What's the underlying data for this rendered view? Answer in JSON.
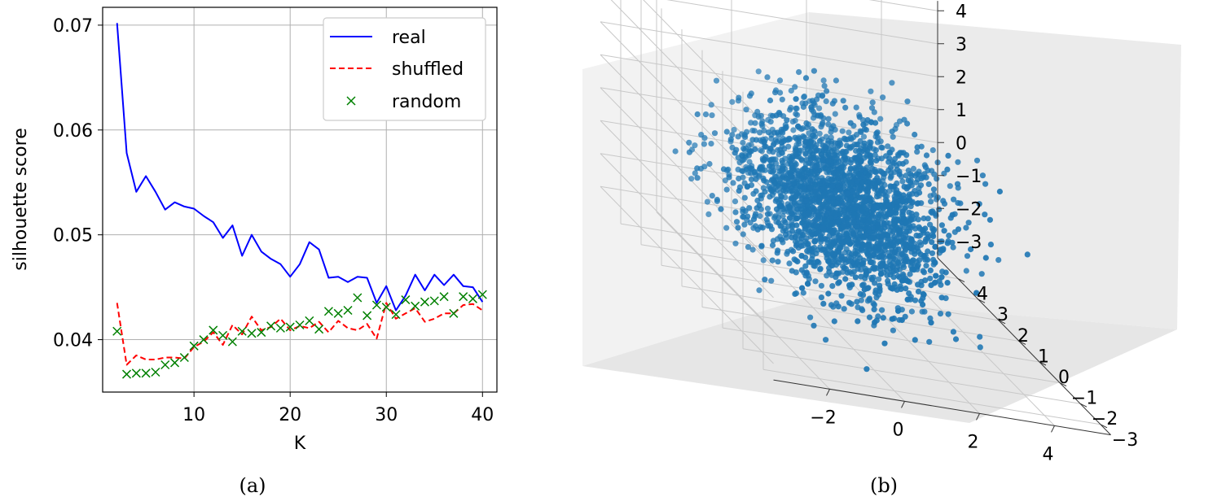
{
  "chart_data": [
    {
      "type": "line",
      "caption": "(a)",
      "xlabel": "K",
      "ylabel": "silhouette score",
      "xlim": [
        0.5,
        41.5
      ],
      "ylim": [
        0.035,
        0.0717
      ],
      "xticks": [
        10,
        20,
        30,
        40
      ],
      "yticks": [
        0.04,
        0.05,
        0.06,
        0.07
      ],
      "ytick_labels": [
        "0.04",
        "0.05",
        "0.06",
        "0.07"
      ],
      "grid": true,
      "legend_position": "top-right",
      "x": [
        2,
        3,
        4,
        5,
        6,
        7,
        8,
        9,
        10,
        11,
        12,
        13,
        14,
        15,
        16,
        17,
        18,
        19,
        20,
        21,
        22,
        23,
        24,
        25,
        26,
        27,
        28,
        29,
        30,
        31,
        32,
        33,
        34,
        35,
        36,
        37,
        38,
        39,
        40
      ],
      "series": [
        {
          "name": "real",
          "style": "solid",
          "color": "#0000ff",
          "values": [
            0.0702,
            0.0578,
            0.0541,
            0.0556,
            0.0541,
            0.0524,
            0.0531,
            0.0527,
            0.0525,
            0.0518,
            0.0512,
            0.0497,
            0.0509,
            0.048,
            0.05,
            0.0484,
            0.0477,
            0.0472,
            0.046,
            0.0472,
            0.0493,
            0.0486,
            0.0459,
            0.046,
            0.0455,
            0.046,
            0.0459,
            0.0435,
            0.0451,
            0.0428,
            0.0442,
            0.0462,
            0.0447,
            0.0462,
            0.0452,
            0.0462,
            0.0451,
            0.045,
            0.0436
          ]
        },
        {
          "name": "shuffled",
          "style": "dashed",
          "color": "#ff0000",
          "values": [
            0.0435,
            0.0376,
            0.0385,
            0.0381,
            0.0381,
            0.0383,
            0.0383,
            0.0382,
            0.0393,
            0.0398,
            0.0407,
            0.0395,
            0.0414,
            0.0405,
            0.0422,
            0.0409,
            0.0412,
            0.042,
            0.0409,
            0.0413,
            0.0411,
            0.0417,
            0.0407,
            0.0418,
            0.0411,
            0.0409,
            0.0415,
            0.0401,
            0.0435,
            0.042,
            0.0425,
            0.043,
            0.0417,
            0.042,
            0.0425,
            0.0425,
            0.0433,
            0.0434,
            0.0428
          ]
        },
        {
          "name": "random",
          "style": "x",
          "color": "#008000",
          "values": [
            0.0408,
            0.0367,
            0.0368,
            0.0368,
            0.0369,
            0.0376,
            0.0378,
            0.0383,
            0.0394,
            0.04,
            0.0409,
            0.0404,
            0.0398,
            0.0408,
            0.0406,
            0.0407,
            0.0413,
            0.0411,
            0.0412,
            0.0414,
            0.0418,
            0.041,
            0.0427,
            0.0425,
            0.0428,
            0.044,
            0.0423,
            0.0433,
            0.0431,
            0.0424,
            0.0438,
            0.0432,
            0.0436,
            0.0437,
            0.0441,
            0.0425,
            0.0441,
            0.0439,
            0.0443
          ]
        }
      ]
    },
    {
      "type": "scatter3d",
      "caption": "(b)",
      "color": "#1f77b4",
      "xlim": [
        -3.5,
        5.5
      ],
      "ylim": [
        -3.5,
        5.0
      ],
      "zlim": [
        -3.5,
        4.3
      ],
      "xticks": [
        -2,
        0,
        2,
        4
      ],
      "xtick_labels": [
        "−2",
        "0",
        "2",
        "4"
      ],
      "yticks": [
        -3,
        -2,
        -1,
        0,
        1,
        2,
        3,
        4
      ],
      "ytick_labels": [
        "−3",
        "−2",
        "−1",
        "0",
        "1",
        "2",
        "3",
        "4"
      ],
      "zticks": [
        -3,
        -2,
        -1,
        0,
        1,
        2,
        3,
        4
      ],
      "ztick_labels": [
        "−3",
        "−2",
        "−1",
        "0",
        "1",
        "2",
        "3",
        "4"
      ],
      "distribution": "standard normal (approx. mean 0.5, sd 1.2)",
      "n_points": 2500,
      "grid": true
    }
  ]
}
